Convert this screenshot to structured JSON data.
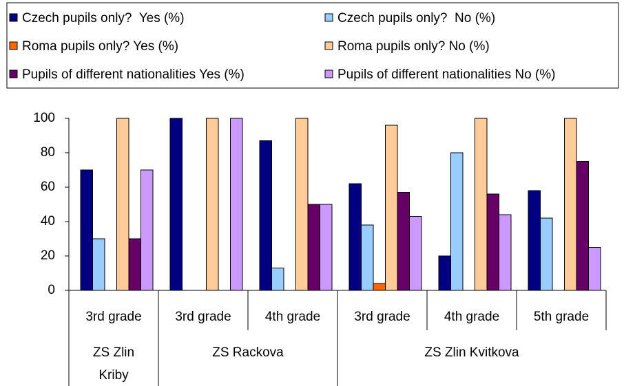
{
  "chart_data": {
    "type": "bar",
    "groups": [
      {
        "label": "ZS Zlin Kriby",
        "categories": [
          "3rd grade"
        ]
      },
      {
        "label": "ZS Rackova",
        "categories": [
          "3rd grade",
          "4th grade"
        ]
      },
      {
        "label": "ZS Zlin Kvitkova",
        "categories": [
          "3rd grade",
          "4th grade",
          "5th grade"
        ]
      }
    ],
    "series": [
      {
        "name": "Czech pupils only?  Yes (%)",
        "color": "#000080",
        "values": [
          70,
          100,
          87,
          62,
          20,
          58
        ]
      },
      {
        "name": "Czech pupils only?  No (%)",
        "color": "#99ccff",
        "values": [
          30,
          0,
          13,
          38,
          80,
          42
        ]
      },
      {
        "name": "Roma pupils only? Yes (%)",
        "color": "#ff6600",
        "values": [
          0,
          0,
          0,
          4,
          0,
          0
        ]
      },
      {
        "name": "Roma pupils only? No (%)",
        "color": "#ffcc99",
        "values": [
          100,
          100,
          100,
          96,
          100,
          100
        ]
      },
      {
        "name": "Pupils of different nationalities Yes (%)",
        "color": "#660066",
        "values": [
          30,
          0,
          50,
          57,
          56,
          75
        ]
      },
      {
        "name": "Pupils of different nationalities No (%)",
        "color": "#cc99ff",
        "values": [
          70,
          100,
          50,
          43,
          44,
          25
        ]
      }
    ],
    "ylim": [
      0,
      100
    ],
    "yticks": [
      0,
      20,
      40,
      60,
      80,
      100
    ],
    "grid": false,
    "legend": "top"
  }
}
